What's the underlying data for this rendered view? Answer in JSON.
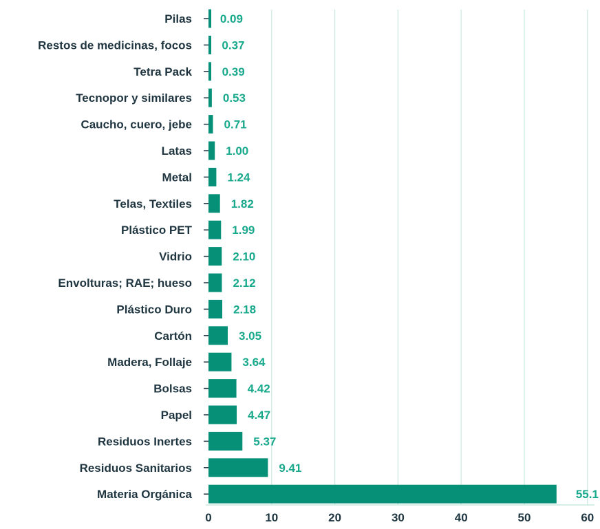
{
  "colors": {
    "bar": "#069077",
    "value_label": "#18a98c",
    "grid": "#c9e8e0",
    "axis": "#1f3540",
    "text": "#1f3540"
  },
  "chart_data": {
    "type": "bar",
    "orientation": "horizontal",
    "title": "",
    "xlabel": "",
    "ylabel": "",
    "xlim": [
      0,
      60
    ],
    "xticks": [
      "0",
      "10",
      "20",
      "30",
      "40",
      "50",
      "60"
    ],
    "grid": "vertical",
    "legend": "none",
    "categories": [
      "Pilas",
      "Restos de medicinas, focos",
      "Tetra Pack",
      "Tecnopor y similares",
      "Caucho, cuero, jebe",
      "Latas",
      "Metal",
      "Telas, Textiles",
      "Plástico PET",
      "Vidrio",
      "Envolturas; RAE; hueso",
      "Plástico Duro",
      "Cartón",
      "Madera, Follaje",
      "Bolsas",
      "Papel",
      "Residuos Inertes",
      "Residuos Sanitarios",
      "Materia Orgánica"
    ],
    "values": [
      0.09,
      0.37,
      0.39,
      0.53,
      0.71,
      1.0,
      1.24,
      1.82,
      1.99,
      2.1,
      2.12,
      2.18,
      3.05,
      3.64,
      4.42,
      4.47,
      5.37,
      9.41,
      55.1
    ],
    "value_labels": [
      "0.09",
      "0.37",
      "0.39",
      "0.53",
      "0.71",
      "1.00",
      "1.24",
      "1.82",
      "1.99",
      "2.10",
      "2.12",
      "2.18",
      "3.05",
      "3.64",
      "4.42",
      "4.47",
      "5.37",
      "9.41",
      "55.1"
    ]
  }
}
